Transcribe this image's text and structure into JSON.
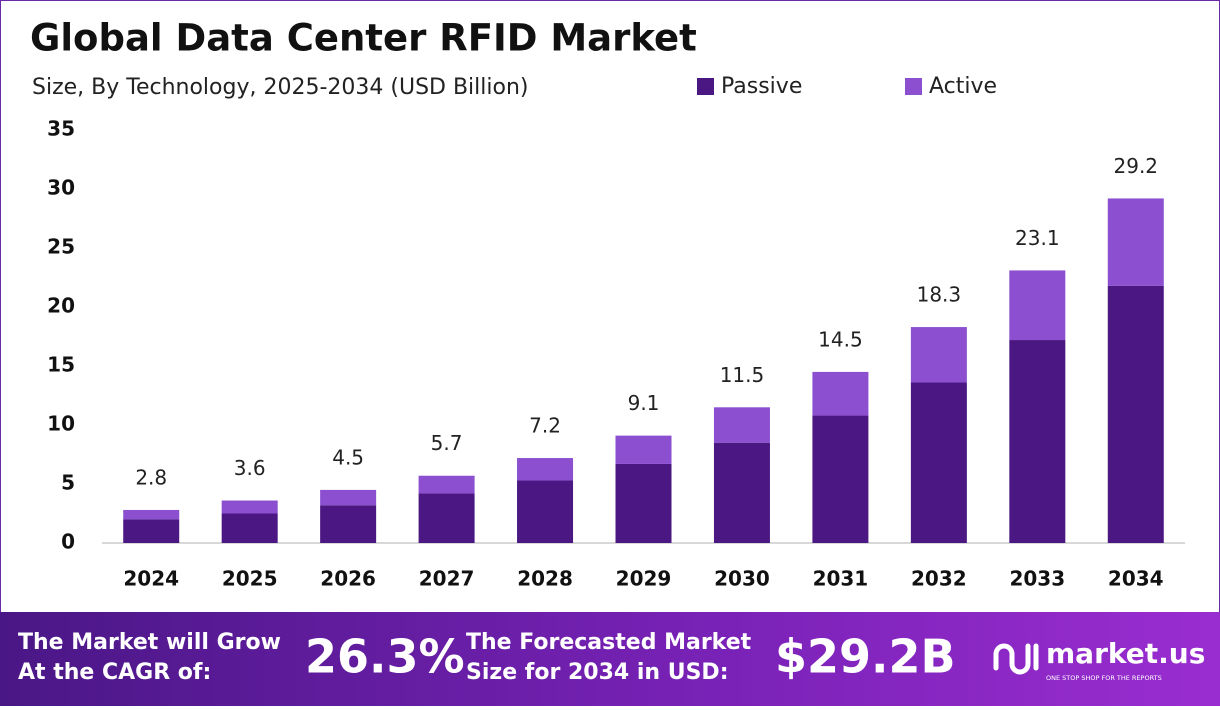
{
  "chart_data": {
    "type": "stacked-bar",
    "title": "Global Data Center RFID Market",
    "subtitle": "Size, By Technology, 2025-2034 (USD Billion)",
    "categories": [
      "2024",
      "2025",
      "2026",
      "2027",
      "2028",
      "2029",
      "2030",
      "2031",
      "2032",
      "2033",
      "2034"
    ],
    "series": [
      {
        "name": "Passive",
        "color": "#4b1782",
        "values": [
          2.0,
          2.5,
          3.2,
          4.2,
          5.3,
          6.7,
          8.5,
          10.8,
          13.6,
          17.2,
          21.8
        ]
      },
      {
        "name": "Active",
        "color": "#8b4fd0",
        "values": [
          0.8,
          1.1,
          1.3,
          1.5,
          1.9,
          2.4,
          3.0,
          3.7,
          4.7,
          5.9,
          7.4
        ]
      }
    ],
    "totals": [
      2.8,
      3.6,
      4.5,
      5.7,
      7.2,
      9.1,
      11.5,
      14.5,
      18.3,
      23.1,
      29.2
    ],
    "ylim": [
      0,
      35
    ],
    "yticks": [
      0,
      5,
      10,
      15,
      20,
      25,
      30,
      35
    ],
    "grid": false
  },
  "footer": {
    "cagr_text": [
      "The Market will Grow",
      "At the CAGR of:"
    ],
    "cagr": "26.3%",
    "forecast_text": [
      "The Forecasted Market",
      "Size for 2034 in USD:"
    ],
    "forecast": "$29.2B",
    "brand": "market.us",
    "tagline": "ONE STOP SHOP FOR THE REPORTS"
  }
}
